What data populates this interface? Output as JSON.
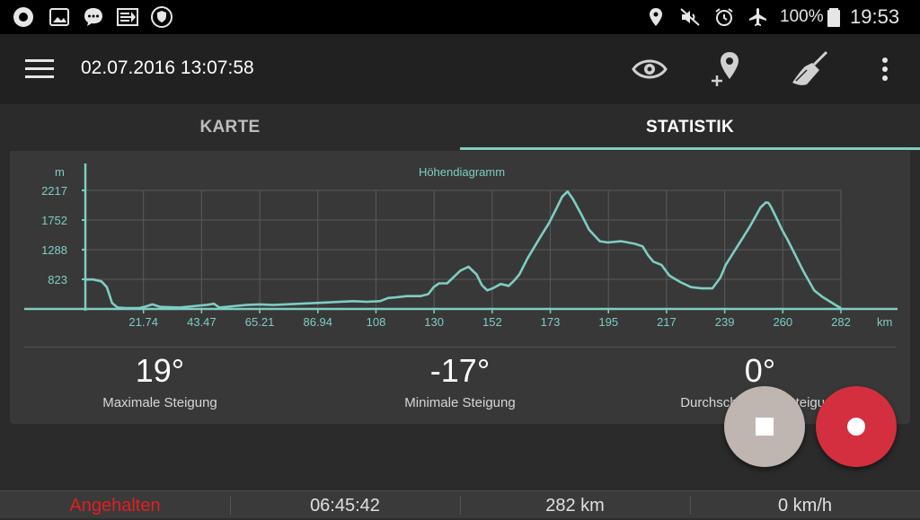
{
  "status_bar": {
    "battery_text": "100%",
    "clock": "19:53",
    "left_icons": [
      "record-icon",
      "image-icon",
      "chat-icon",
      "cast-icon",
      "shield-icon"
    ],
    "right_icons": [
      "location-icon",
      "mute-icon",
      "alarm-icon",
      "airplane-icon",
      "battery-icon"
    ]
  },
  "toolbar": {
    "title": "02.07.2016 13:07:58",
    "actions": [
      "eye-icon",
      "add-location-icon",
      "broom-icon",
      "more-vert-icon"
    ]
  },
  "tabs": [
    {
      "label": "KARTE",
      "active": false
    },
    {
      "label": "STATISTIK",
      "active": true
    }
  ],
  "colors": {
    "accent": "#7fcdc2",
    "record": "#d32f3f",
    "stopped_text": "#e02020"
  },
  "chart_data": {
    "type": "line",
    "title": "Höhendiagramm",
    "ylabel": "m",
    "xlabel": "km",
    "y_ticks": [
      "2217",
      "1752",
      "1288",
      "823"
    ],
    "x_ticks": [
      "21.74",
      "43.47",
      "65.21",
      "86.94",
      "108",
      "130",
      "152",
      "173",
      "195",
      "217",
      "239",
      "260",
      "282"
    ],
    "ylim": [
      358,
      2217
    ],
    "xlim": [
      0,
      282
    ],
    "grid": true,
    "series": [
      {
        "x": [
          0,
          3,
          6,
          8,
          10,
          12,
          15,
          20,
          22,
          25,
          28,
          35,
          40,
          45,
          48,
          50,
          55,
          60,
          65,
          70,
          80,
          90,
          100,
          105,
          110,
          113,
          116,
          120,
          125,
          128,
          130,
          132,
          135,
          138,
          140,
          143,
          146,
          148,
          150,
          152,
          155,
          158,
          160,
          162,
          165,
          170,
          173,
          176,
          178,
          180,
          182,
          185,
          188,
          192,
          195,
          200,
          205,
          208,
          210,
          212,
          215,
          218,
          222,
          226,
          230,
          234,
          237,
          239,
          242,
          245,
          248,
          250,
          252,
          254,
          255,
          256,
          258,
          260,
          262,
          265,
          268,
          270,
          272,
          275,
          278,
          280,
          282
        ],
        "y": [
          820,
          820,
          790,
          700,
          450,
          380,
          370,
          370,
          390,
          430,
          390,
          380,
          400,
          420,
          440,
          380,
          400,
          420,
          430,
          420,
          440,
          460,
          480,
          470,
          480,
          530,
          540,
          560,
          560,
          590,
          700,
          760,
          760,
          880,
          960,
          1020,
          900,
          730,
          650,
          680,
          750,
          720,
          800,
          900,
          1150,
          1500,
          1700,
          1950,
          2120,
          2200,
          2080,
          1850,
          1600,
          1420,
          1400,
          1420,
          1380,
          1340,
          1200,
          1100,
          1050,
          880,
          780,
          700,
          680,
          680,
          850,
          1050,
          1250,
          1450,
          1650,
          1800,
          1950,
          2030,
          2020,
          1950,
          1780,
          1600,
          1450,
          1200,
          950,
          800,
          650,
          550,
          470,
          420,
          370
        ]
      }
    ]
  },
  "stats": [
    {
      "value": "19°",
      "label": "Maximale Steigung"
    },
    {
      "value": "-17°",
      "label": "Minimale Steigung"
    },
    {
      "value": "0°",
      "label": "Durchschnittliche Steigung"
    }
  ],
  "fabs": {
    "stop": "stop-icon",
    "record": "record-icon"
  },
  "bottom_bar": {
    "status": "Angehalten",
    "duration": "06:45:42",
    "distance": "282 km",
    "speed": "0 km/h"
  }
}
